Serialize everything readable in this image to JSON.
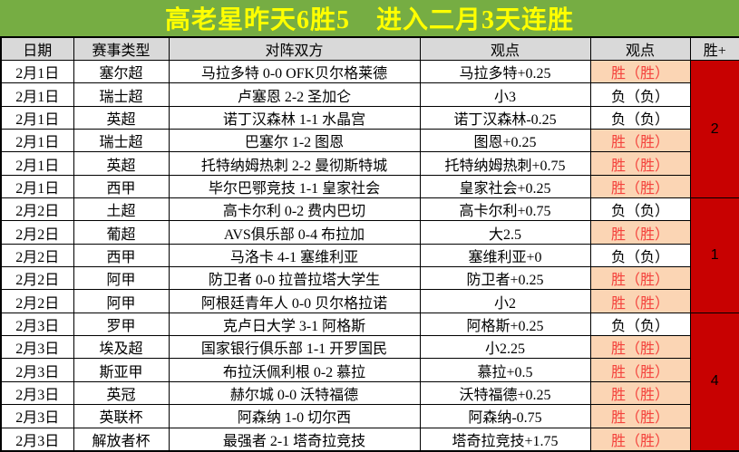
{
  "title": {
    "text": "高老星昨天6胜5　进入二月3天连胜"
  },
  "colors": {
    "title_bg": "#76AD43",
    "title_text": "#FFFF00",
    "header_bg": "#D9D9D9",
    "win_bg": "#FBD5B4",
    "win_text": "#F4423C",
    "streak_bg": "#C80101"
  },
  "table": {
    "headers": [
      "日期",
      "赛事类型",
      "对阵双方",
      "观点",
      "观点",
      "胜+"
    ],
    "rows": [
      {
        "date": "2月1日",
        "league": "塞尔超",
        "match": "马拉多特 0-0 OFK贝尔格莱德",
        "pick": "马拉多特+0.25",
        "result": "胜（胜）",
        "win": true
      },
      {
        "date": "2月1日",
        "league": "瑞士超",
        "match": "卢塞恩 2-2 圣加仑",
        "pick": "小3",
        "result": "负（负）",
        "win": false
      },
      {
        "date": "2月1日",
        "league": "英超",
        "match": "诺丁汉森林 1-1 水晶宫",
        "pick": "诺丁汉森林-0.25",
        "result": "负（负）",
        "win": false
      },
      {
        "date": "2月1日",
        "league": "瑞士超",
        "match": "巴塞尔 1-2 图恩",
        "pick": "图恩+0.25",
        "result": "胜（胜）",
        "win": true
      },
      {
        "date": "2月1日",
        "league": "英超",
        "match": "托特纳姆热刺 2-2 曼彻斯特城",
        "pick": "托特纳姆热刺+0.75",
        "result": "胜（胜）",
        "win": true
      },
      {
        "date": "2月1日",
        "league": "西甲",
        "match": "毕尔巴鄂竞技 1-1 皇家社会",
        "pick": "皇家社会+0.25",
        "result": "胜（胜）",
        "win": true
      },
      {
        "date": "2月2日",
        "league": "土超",
        "match": "高卡尔利 0-2 费内巴切",
        "pick": "高卡尔利+0.75",
        "result": "负（负）",
        "win": false
      },
      {
        "date": "2月2日",
        "league": "葡超",
        "match": "AVS俱乐部 0-4 布拉加",
        "pick": "大2.5",
        "result": "胜（胜）",
        "win": true
      },
      {
        "date": "2月2日",
        "league": "西甲",
        "match": "马洛卡 4-1 塞维利亚",
        "pick": "塞维利亚+0",
        "result": "负（负）",
        "win": false
      },
      {
        "date": "2月2日",
        "league": "阿甲",
        "match": "防卫者 0-0 拉普拉塔大学生",
        "pick": "防卫者+0.25",
        "result": "胜（胜）",
        "win": true
      },
      {
        "date": "2月2日",
        "league": "阿甲",
        "match": "阿根廷青年人 0-0 贝尔格拉诺",
        "pick": "小2",
        "result": "胜（胜）",
        "win": true
      },
      {
        "date": "2月3日",
        "league": "罗甲",
        "match": "克卢日大学 3-1 阿格斯",
        "pick": "阿格斯+0.25",
        "result": "负（负）",
        "win": false
      },
      {
        "date": "2月3日",
        "league": "埃及超",
        "match": "国家银行俱乐部 1-1 开罗国民",
        "pick": "小2.25",
        "result": "胜（胜）",
        "win": true
      },
      {
        "date": "2月3日",
        "league": "斯亚甲",
        "match": "布拉沃佩利根 0-2 慕拉",
        "pick": "慕拉+0.5",
        "result": "胜（胜）",
        "win": true
      },
      {
        "date": "2月3日",
        "league": "英冠",
        "match": "赫尔城 0-0 沃特福德",
        "pick": "沃特福德+0.25",
        "result": "胜（胜）",
        "win": true
      },
      {
        "date": "2月3日",
        "league": "英联杯",
        "match": "阿森纳 1-0 切尔西",
        "pick": "阿森纳-0.75",
        "result": "胜（胜）",
        "win": true
      },
      {
        "date": "2月3日",
        "league": "解放者杯",
        "match": "最强者 2-1 塔奇拉竞技",
        "pick": "塔奇拉竞技+1.75",
        "result": "胜（胜）",
        "win": true
      }
    ],
    "streak_groups": [
      {
        "value": "2",
        "row_count": 6
      },
      {
        "value": "1",
        "row_count": 5
      },
      {
        "value": "4",
        "row_count": 6
      }
    ]
  }
}
